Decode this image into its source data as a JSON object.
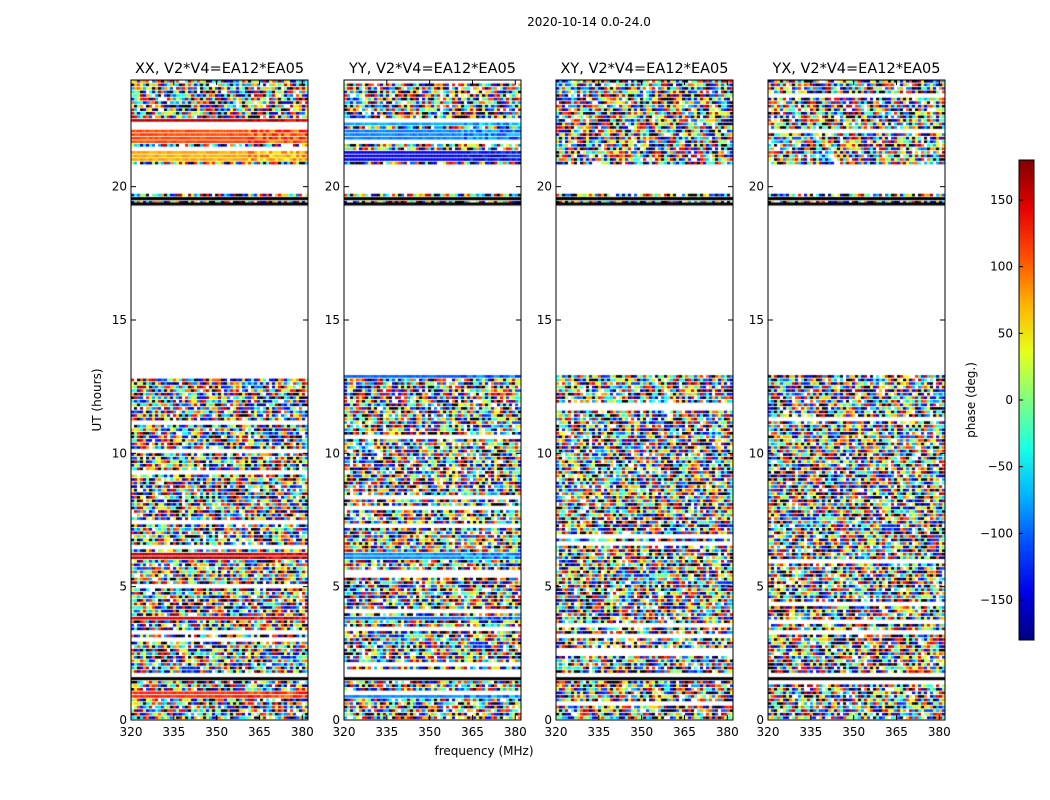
{
  "chart_data": {
    "type": "heatmap",
    "title": "2020-10-14 0.0-24.0",
    "xlabel": "frequency (MHz)",
    "ylabel": "UT (hours)",
    "xlim": [
      320,
      382
    ],
    "ylim": [
      0,
      24
    ],
    "x_ticks": [
      "320",
      "335",
      "350",
      "365",
      "380"
    ],
    "x_tick_values": [
      320,
      335,
      350,
      365,
      380
    ],
    "y_ticks": [
      "0",
      "5",
      "10",
      "15",
      "20"
    ],
    "y_tick_values": [
      0,
      5,
      10,
      15,
      20
    ],
    "panels": [
      {
        "title": "XX, V2*V4=EA12*EA05",
        "coherent_phase": 120,
        "coherent_bands": [
          [
            0.8,
            1.1,
            120
          ],
          [
            3.7,
            3.9,
            150
          ],
          [
            6.0,
            6.25,
            160
          ],
          [
            12.75,
            12.9,
            150
          ],
          [
            20.9,
            21.4,
            75
          ],
          [
            21.6,
            22.2,
            110
          ],
          [
            22.3,
            22.5,
            160
          ]
        ]
      },
      {
        "title": "YY, V2*V4=EA12*EA05",
        "coherent_phase": -95,
        "coherent_bands": [
          [
            0.8,
            1.1,
            -85
          ],
          [
            3.7,
            3.9,
            -95
          ],
          [
            6.0,
            6.25,
            -85
          ],
          [
            12.75,
            12.9,
            -100
          ],
          [
            20.9,
            21.4,
            -140
          ],
          [
            21.6,
            22.2,
            -90
          ],
          [
            22.3,
            22.5,
            -75
          ]
        ]
      },
      {
        "title": "XY, V2*V4=EA12*EA05",
        "coherent_phase": null,
        "coherent_bands": []
      },
      {
        "title": "YX, V2*V4=EA12*EA05",
        "coherent_phase": null,
        "coherent_bands": []
      }
    ],
    "no_data_ranges": [
      [
        1.5,
        1.8
      ],
      [
        13.0,
        19.3
      ],
      [
        19.7,
        20.8
      ]
    ],
    "flagged_black_rows": [
      19.35,
      19.55,
      1.55
    ],
    "colorbar": {
      "label": "phase (deg.)",
      "range": [
        -180,
        180
      ],
      "ticks": [
        "150",
        "100",
        "50",
        "0",
        "−50",
        "−100",
        "−150"
      ],
      "tick_values": [
        150,
        100,
        50,
        0,
        -50,
        -100,
        -150
      ],
      "colormap": "jet"
    }
  }
}
